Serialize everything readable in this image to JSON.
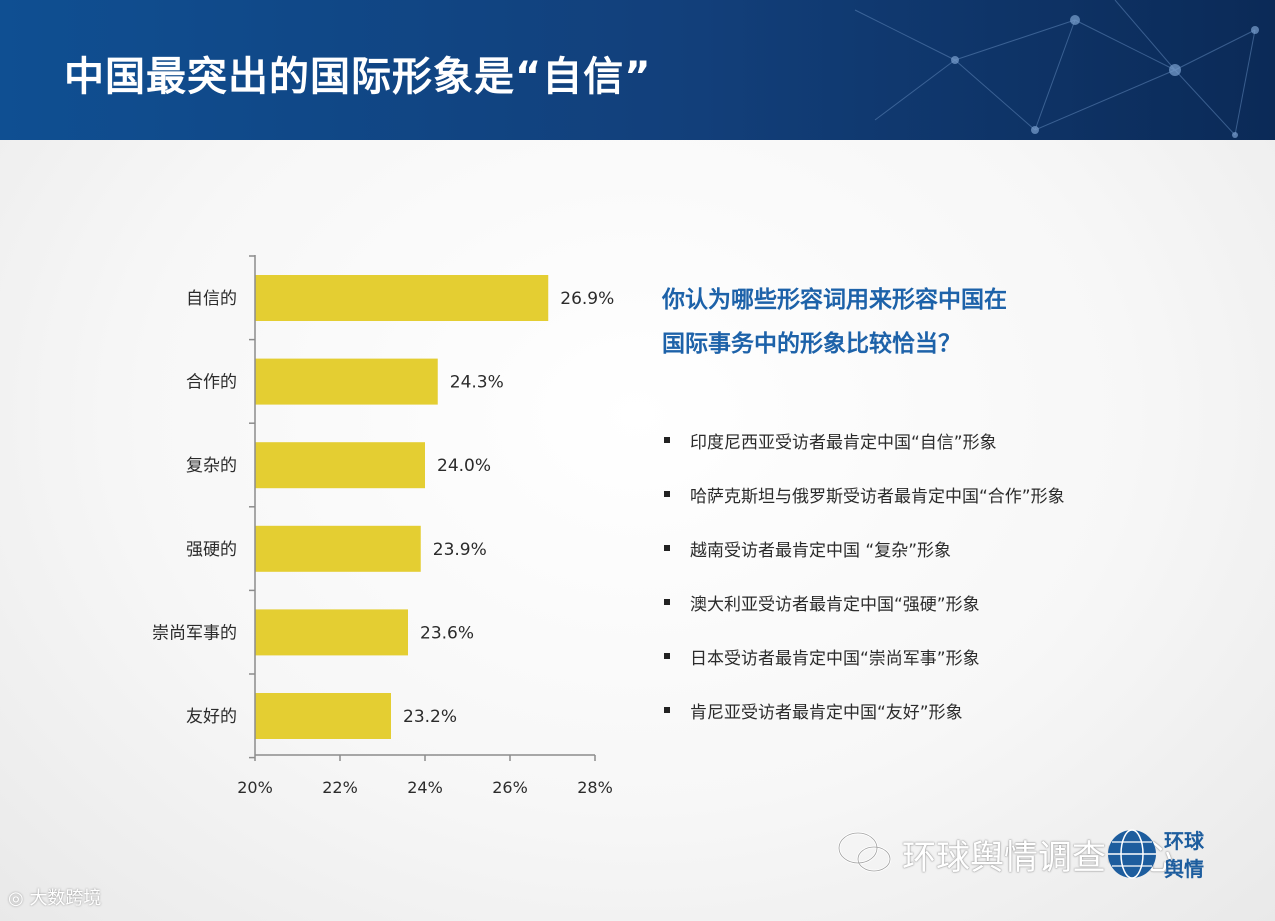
{
  "header": {
    "title": "中国最突出的国际形象是“自信”"
  },
  "chart_data": {
    "type": "bar",
    "orientation": "horizontal",
    "categories": [
      "自信的",
      "合作的",
      "复杂的",
      "强硬的",
      "崇尚军事的",
      "友好的"
    ],
    "values": [
      26.9,
      24.3,
      24.0,
      23.9,
      23.6,
      23.2
    ],
    "value_labels": [
      "26.9%",
      "24.3%",
      "24.0%",
      "23.9%",
      "23.6%",
      "23.2%"
    ],
    "xlim": [
      20,
      28
    ],
    "xticks": [
      20,
      22,
      24,
      26,
      28
    ],
    "xtick_labels": [
      "20%",
      "22%",
      "24%",
      "26%",
      "28%"
    ],
    "bar_color": "#e4ce32",
    "xlabel": "",
    "ylabel": ""
  },
  "question": {
    "line1": "你认为哪些形容词用来形容中国在",
    "line2": "国际事务中的形象比较恰当？"
  },
  "findings": [
    "印度尼西亚受访者最肯定中国“自信”形象",
    "哈萨克斯坦与俄罗斯受访者最肯定中国“合作”形象",
    "越南受访者最肯定中国 “复杂”形象",
    "澳大利亚受访者最肯定中国“强硬”形象",
    "日本受访者最肯定中国“崇尚军事”形象",
    "肯尼亚受访者最肯定中国“友好”形象"
  ],
  "watermark": {
    "name": "环球舆情调查中心",
    "logo_text_top": "环球",
    "logo_text_bottom": "舆情",
    "bottom_left": "大数跨境"
  }
}
